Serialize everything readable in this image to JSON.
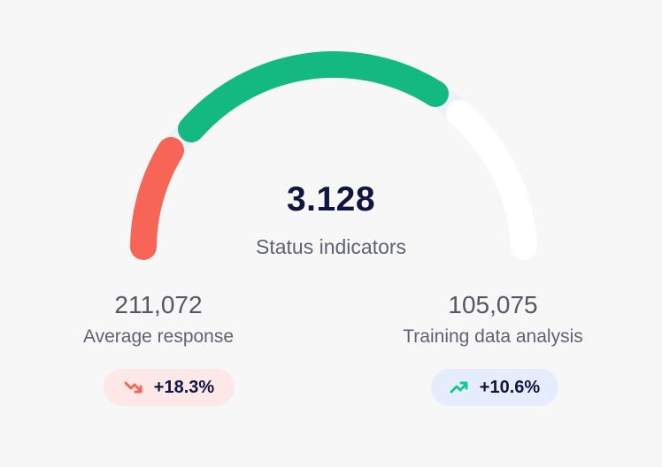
{
  "gauge": {
    "value": "3.128",
    "label": "Status indicators",
    "segments": [
      {
        "name": "low",
        "color": "#f76556"
      },
      {
        "name": "mid",
        "color": "#14b982"
      },
      {
        "name": "high",
        "color": "#ffffff"
      }
    ]
  },
  "stats": [
    {
      "value": "211,072",
      "label": "Average response",
      "change": "+18.3%",
      "trend_icon": "trend-down-icon",
      "trend_color": "#f76556",
      "badge_bg": "#fde8e8"
    },
    {
      "value": "105,075",
      "label": "Training data analysis",
      "change": "+10.6%",
      "trend_icon": "trend-up-icon",
      "trend_color": "#14c98d",
      "badge_bg": "#e5edfd"
    }
  ]
}
